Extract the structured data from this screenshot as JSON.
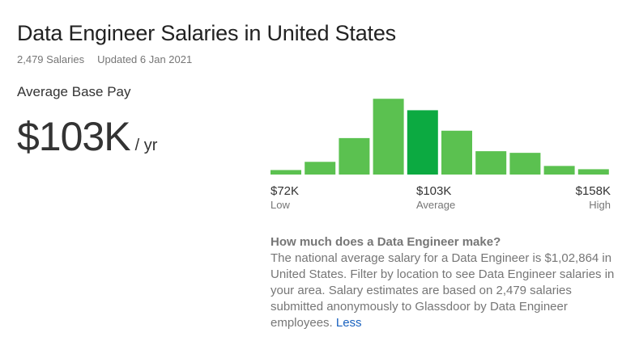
{
  "title": "Data Engineer Salaries in United States",
  "meta": {
    "count": "2,479 Salaries",
    "updated": "Updated 6 Jan 2021"
  },
  "pay": {
    "label": "Average Base Pay",
    "value": "$103K",
    "unit": "/ yr"
  },
  "chart_data": {
    "type": "bar",
    "values": [
      5,
      15,
      44,
      92,
      78,
      53,
      28,
      26,
      10,
      6
    ],
    "highlight_index": 4,
    "colors": {
      "bar": "#5bc150",
      "highlight": "#0caa41"
    },
    "low": {
      "value": "$72K",
      "label": "Low"
    },
    "average": {
      "value": "$103K",
      "label": "Average"
    },
    "high": {
      "value": "$158K",
      "label": "High"
    }
  },
  "description": {
    "heading": "How much does a Data Engineer make?",
    "body": "The national average salary for a Data Engineer is $1,02,864 in United States. Filter by location to see Data Engineer salaries in your area. Salary estimates are based on 2,479 salaries submitted anonymously to Glassdoor by Data Engineer employees. ",
    "link": "Less"
  }
}
